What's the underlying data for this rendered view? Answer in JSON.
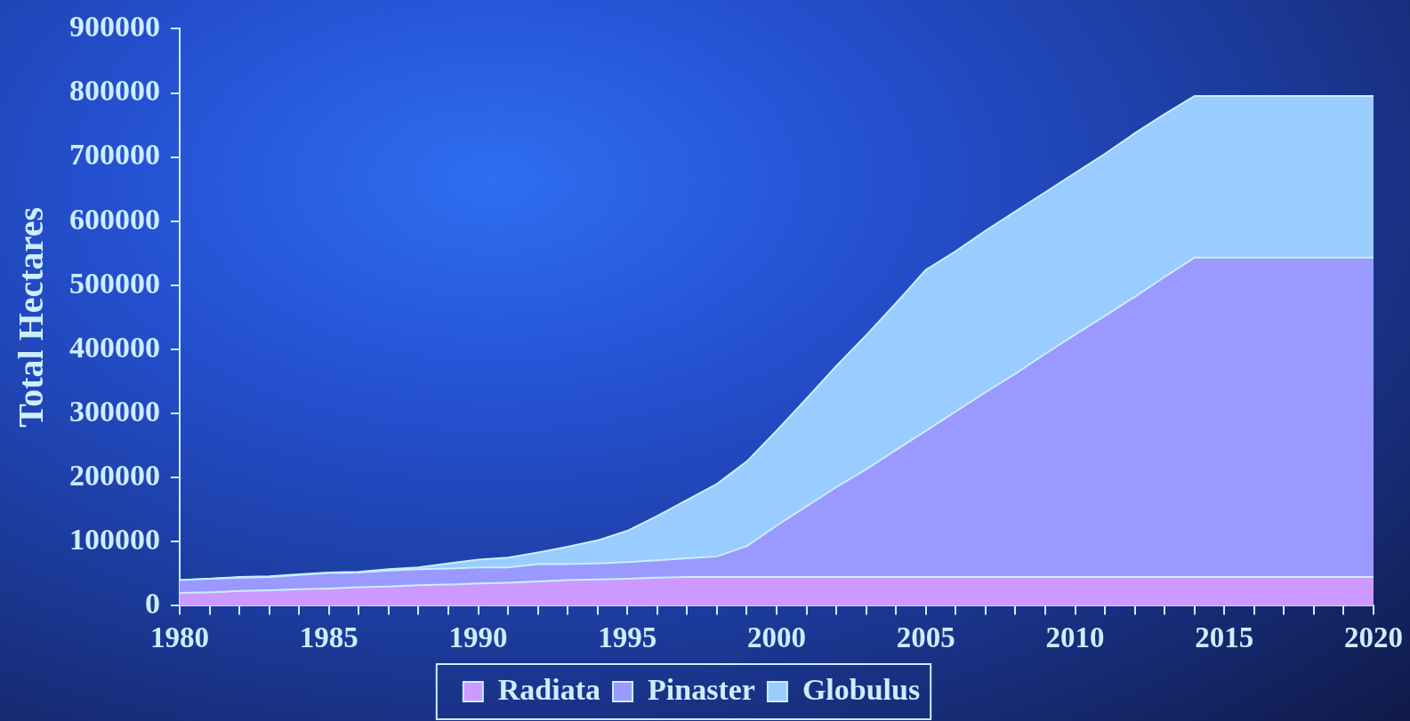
{
  "chart_data": {
    "type": "area",
    "stacked": true,
    "ylabel": "Total Hectares",
    "x": [
      1980,
      1981,
      1982,
      1983,
      1984,
      1985,
      1986,
      1987,
      1988,
      1989,
      1990,
      1991,
      1992,
      1993,
      1994,
      1995,
      1996,
      1997,
      1998,
      1999,
      2000,
      2001,
      2002,
      2003,
      2004,
      2005,
      2006,
      2007,
      2008,
      2009,
      2010,
      2011,
      2012,
      2013,
      2014,
      2015,
      2016,
      2017,
      2018,
      2019,
      2020
    ],
    "series": [
      {
        "name": "Radiata",
        "color": "#cc99ff",
        "values": [
          20000,
          21000,
          23000,
          24000,
          26000,
          27000,
          29000,
          30000,
          32000,
          33000,
          35000,
          36000,
          38000,
          40000,
          41000,
          42000,
          44000,
          45000,
          45000,
          45000,
          45000,
          45000,
          45000,
          45000,
          45000,
          45000,
          45000,
          45000,
          45000,
          45000,
          45000,
          45000,
          45000,
          45000,
          45000,
          45000,
          45000,
          45000,
          45000,
          45000,
          45000
        ]
      },
      {
        "name": "Pinaster",
        "color": "#9999ff",
        "values": [
          20000,
          21000,
          21000,
          21000,
          22000,
          24000,
          23000,
          25000,
          25000,
          25000,
          25000,
          24000,
          27000,
          25000,
          25000,
          26000,
          27000,
          29000,
          32000,
          48000,
          80000,
          110000,
          140000,
          168000,
          198000,
          228000,
          258000,
          288000,
          317000,
          348000,
          378000,
          407000,
          437000,
          468000,
          498000,
          498000,
          498000,
          498000,
          498000,
          498000,
          498000
        ]
      },
      {
        "name": "Globulus",
        "color": "#99ccff",
        "values": [
          0,
          0,
          1000,
          1000,
          1000,
          1000,
          1000,
          2000,
          3000,
          8000,
          12000,
          15000,
          18000,
          27000,
          36000,
          49000,
          69000,
          91000,
          113000,
          132000,
          148000,
          168000,
          189000,
          209000,
          229000,
          251000,
          250000,
          252000,
          253000,
          252000,
          252000,
          253000,
          255000,
          254000,
          252000,
          252000,
          252000,
          252000,
          252000,
          252000,
          252000
        ]
      }
    ],
    "xlim": [
      1980,
      2020
    ],
    "xticks": [
      1980,
      {
        "value": 1981,
        "label": null
      },
      {
        "value": 1982,
        "label": null
      },
      {
        "value": 1983,
        "label": null
      },
      {
        "value": 1984,
        "label": null
      },
      1985,
      {
        "value": 1986,
        "label": null
      },
      {
        "value": 1987,
        "label": null
      },
      {
        "value": 1988,
        "label": null
      },
      {
        "value": 1989,
        "label": null
      },
      1990,
      {
        "value": 1991,
        "label": null
      },
      {
        "value": 1992,
        "label": null
      },
      {
        "value": 1993,
        "label": null
      },
      {
        "value": 1994,
        "label": null
      },
      1995,
      {
        "value": 1996,
        "label": null
      },
      {
        "value": 1997,
        "label": null
      },
      {
        "value": 1998,
        "label": null
      },
      {
        "value": 1999,
        "label": null
      },
      2000,
      {
        "value": 2001,
        "label": null
      },
      {
        "value": 2002,
        "label": null
      },
      {
        "value": 2003,
        "label": null
      },
      {
        "value": 2004,
        "label": null
      },
      2005,
      {
        "value": 2006,
        "label": null
      },
      {
        "value": 2007,
        "label": null
      },
      {
        "value": 2008,
        "label": null
      },
      {
        "value": 2009,
        "label": null
      },
      2010,
      {
        "value": 2011,
        "label": null
      },
      {
        "value": 2012,
        "label": null
      },
      {
        "value": 2013,
        "label": null
      },
      {
        "value": 2014,
        "label": null
      },
      2015,
      {
        "value": 2016,
        "label": null
      },
      {
        "value": 2017,
        "label": null
      },
      {
        "value": 2018,
        "label": null
      },
      {
        "value": 2019,
        "label": null
      },
      2020
    ],
    "ylim": [
      0,
      900000
    ],
    "yticks": [
      0,
      100000,
      200000,
      300000,
      400000,
      500000,
      600000,
      700000,
      800000,
      900000
    ],
    "grid": false,
    "legend": "bottom"
  }
}
